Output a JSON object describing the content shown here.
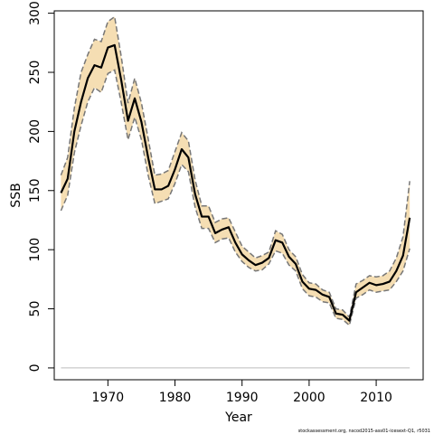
{
  "chart_data": {
    "type": "line",
    "xlabel": "Year",
    "ylabel": "SSB",
    "xlim": [
      1962,
      2017
    ],
    "ylim": [
      -10,
      302
    ],
    "x_ticks": [
      1970,
      1980,
      1990,
      2000,
      2010
    ],
    "y_ticks": [
      0,
      50,
      100,
      150,
      200,
      250,
      300
    ],
    "x_tick_labels": [
      "1970",
      "1980",
      "1990",
      "2000",
      "2010"
    ],
    "y_tick_labels": [
      "0",
      "50",
      "100",
      "150",
      "200",
      "250",
      "300"
    ],
    "footer": "stockassessment.org, nscod2015-ass01-icesext-Q1, r5031",
    "colors": {
      "band": "#f5deb3",
      "estimate": "#000000",
      "bounds": "#777777",
      "baseline": "#bebebe"
    },
    "series": [
      {
        "name": "estimate",
        "x": [
          1963,
          1964,
          1965,
          1966,
          1967,
          1968,
          1969,
          1970,
          1971,
          1972,
          1973,
          1974,
          1975,
          1976,
          1977,
          1978,
          1979,
          1980,
          1981,
          1982,
          1983,
          1984,
          1985,
          1986,
          1987,
          1988,
          1989,
          1990,
          1991,
          1992,
          1993,
          1994,
          1995,
          1996,
          1997,
          1998,
          1999,
          2000,
          2001,
          2002,
          2003,
          2004,
          2005,
          2006,
          2007,
          2008,
          2009,
          2010,
          2011,
          2012,
          2013,
          2014,
          2015
        ],
        "y": [
          148,
          160,
          200,
          225,
          245,
          256,
          254,
          271,
          273,
          243,
          209,
          228,
          208,
          178,
          151,
          151,
          154,
          168,
          185,
          178,
          147,
          128,
          128,
          114,
          117,
          119,
          106,
          96,
          91,
          87,
          89,
          93,
          108,
          106,
          94,
          88,
          73,
          67,
          66,
          62,
          60,
          46,
          45,
          40,
          64,
          68,
          72,
          70,
          71,
          73,
          82,
          95,
          127
        ]
      },
      {
        "name": "upper",
        "x": [
          1963,
          1964,
          1965,
          1966,
          1967,
          1968,
          1969,
          1970,
          1971,
          1972,
          1973,
          1974,
          1975,
          1976,
          1977,
          1978,
          1979,
          1980,
          1981,
          1982,
          1983,
          1984,
          1985,
          1986,
          1987,
          1988,
          1989,
          1990,
          1991,
          1992,
          1993,
          1994,
          1995,
          1996,
          1997,
          1998,
          1999,
          2000,
          2001,
          2002,
          2003,
          2004,
          2005,
          2006,
          2007,
          2008,
          2009,
          2010,
          2011,
          2012,
          2013,
          2014,
          2015
        ],
        "y": [
          163,
          178,
          220,
          250,
          265,
          278,
          276,
          293,
          297,
          263,
          224,
          245,
          224,
          194,
          163,
          164,
          167,
          183,
          199,
          192,
          159,
          137,
          137,
          123,
          126,
          127,
          115,
          103,
          98,
          93,
          95,
          98,
          116,
          113,
          100,
          94,
          79,
          72,
          71,
          66,
          64,
          50,
          49,
          43,
          71,
          74,
          78,
          77,
          78,
          82,
          93,
          111,
          158
        ]
      },
      {
        "name": "lower",
        "x": [
          1963,
          1964,
          1965,
          1966,
          1967,
          1968,
          1969,
          1970,
          1971,
          1972,
          1973,
          1974,
          1975,
          1976,
          1977,
          1978,
          1979,
          1980,
          1981,
          1982,
          1983,
          1984,
          1985,
          1986,
          1987,
          1988,
          1989,
          1990,
          1991,
          1992,
          1993,
          1994,
          1995,
          1996,
          1997,
          1998,
          1999,
          2000,
          2001,
          2002,
          2003,
          2004,
          2005,
          2006,
          2007,
          2008,
          2009,
          2010,
          2011,
          2012,
          2013,
          2014,
          2015
        ],
        "y": [
          133,
          146,
          182,
          205,
          225,
          237,
          233,
          249,
          252,
          224,
          193,
          212,
          193,
          163,
          139,
          141,
          143,
          156,
          172,
          166,
          136,
          118,
          118,
          106,
          109,
          110,
          98,
          90,
          85,
          82,
          83,
          88,
          99,
          97,
          87,
          82,
          67,
          61,
          60,
          56,
          55,
          42,
          41,
          36,
          59,
          62,
          66,
          64,
          65,
          66,
          73,
          82,
          101
        ]
      }
    ]
  }
}
